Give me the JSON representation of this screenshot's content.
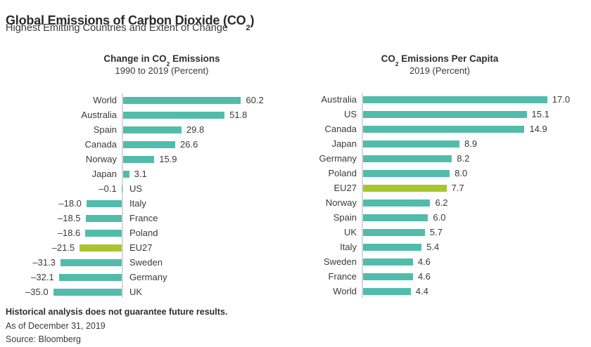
{
  "title": {
    "pre": "Global Emissions of Carbon Dioxide (CO",
    "sub": "2",
    "post": ")"
  },
  "subtitle": "Highest Emitting Countries and Extent of Change",
  "colors": {
    "bar_teal": "#52BCAC",
    "bar_highlight": "#A9C42F",
    "axis_line": "#D9D9D9",
    "text": "#3A3A3A"
  },
  "chart_data": [
    {
      "type": "bar",
      "orientation": "horizontal",
      "title": {
        "pre": "Change in CO",
        "sub": "2",
        "post": " Emissions"
      },
      "subtitle": "1990 to 2019 (Percent)",
      "categories": [
        "World",
        "Australia",
        "Spain",
        "Canada",
        "Norway",
        "Japan",
        "US",
        "Italy",
        "France",
        "Poland",
        "EU27",
        "Sweden",
        "Germany",
        "UK"
      ],
      "values": [
        60.2,
        51.8,
        29.8,
        26.6,
        15.9,
        3.1,
        -0.1,
        -18.0,
        -18.5,
        -18.6,
        -21.5,
        -31.3,
        -32.1,
        -35.0
      ],
      "highlight_category": "EU27",
      "xlim": [
        -40,
        65
      ],
      "grid": false,
      "legend": false
    },
    {
      "type": "bar",
      "orientation": "horizontal",
      "title": {
        "pre": "CO",
        "sub": "2",
        "post": " Emissions Per Capita"
      },
      "subtitle": "2019 (Percent)",
      "categories": [
        "Australia",
        "US",
        "Canada",
        "Japan",
        "Germany",
        "Poland",
        "EU27",
        "Norway",
        "Spain",
        "UK",
        "Italy",
        "Sweden",
        "France",
        "World"
      ],
      "values": [
        17.0,
        15.1,
        14.9,
        8.9,
        8.2,
        8.0,
        7.7,
        6.2,
        6.0,
        5.7,
        5.4,
        4.6,
        4.6,
        4.4
      ],
      "highlight_category": "EU27",
      "xlim": [
        0,
        18
      ],
      "grid": false,
      "legend": false
    }
  ],
  "footnotes": {
    "disclaimer": "Historical analysis does not guarantee future results.",
    "as_of": "As of December 31, 2019",
    "source": "Source: Bloomberg"
  }
}
